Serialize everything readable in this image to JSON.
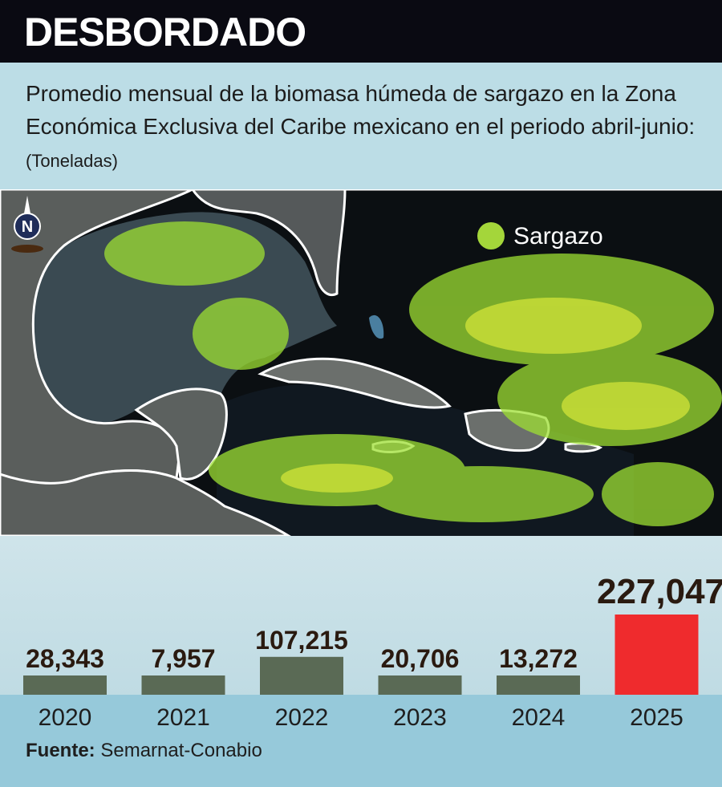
{
  "header": {
    "title": "DESBORDADO"
  },
  "subtitle": {
    "text": "Promedio mensual de la biomasa húmeda de sargazo en la Zona Económica Exclusiva del Caribe mexicano en el periodo abril-junio:",
    "units": "(Toneladas)"
  },
  "map": {
    "compass_label": "N",
    "legend_label": "Sargazo",
    "colors": {
      "ocean_dark": "#0b0f12",
      "gulf": "#3a4a52",
      "land": "#5a5e5c",
      "sargassum": "#9ee033",
      "sargassum_legend": "#a4d63a",
      "border": "#ffffff"
    }
  },
  "chart_data": {
    "type": "bar",
    "categories": [
      "2020",
      "2021",
      "2022",
      "2023",
      "2024",
      "2025"
    ],
    "values": [
      28343,
      7957,
      107215,
      20706,
      13272,
      227047
    ],
    "value_labels": [
      "28,343",
      "7,957",
      "107,215",
      "20,706",
      "13,272",
      "227,047"
    ],
    "colors": [
      "#5a6a55",
      "#5a6a55",
      "#5a6a55",
      "#5a6a55",
      "#5a6a55",
      "#ef2b2d"
    ],
    "ylim": [
      0,
      227047
    ],
    "grid": false,
    "title": "",
    "xlabel": "",
    "ylabel": ""
  },
  "source": {
    "label": "Fuente:",
    "text": "Semarnat-Conabio"
  }
}
